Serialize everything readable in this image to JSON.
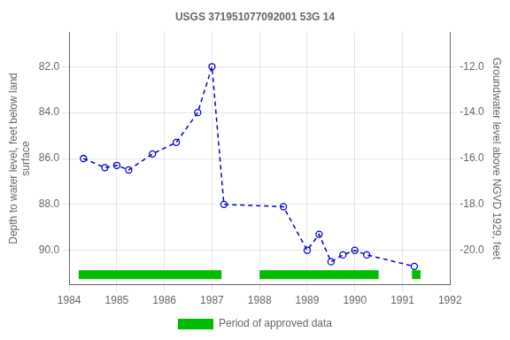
{
  "chart_data": {
    "type": "line",
    "title": "USGS 371951077092001 53G 14",
    "x": [
      1984.3,
      1984.75,
      1985.0,
      1985.25,
      1985.75,
      1986.25,
      1986.7,
      1987.0,
      1987.25,
      1988.5,
      1989.0,
      1989.25,
      1989.5,
      1989.75,
      1990.0,
      1990.25,
      1991.25
    ],
    "series": [
      {
        "values": [
          86.0,
          86.4,
          86.3,
          86.5,
          85.8,
          85.3,
          84.0,
          82.0,
          88.0,
          88.1,
          90.0,
          89.3,
          90.5,
          90.2,
          90.0,
          90.2,
          90.7
        ],
        "color": "#0000CC",
        "marker": "o",
        "line_style": "dashed"
      },
      {
        "name": "Period of approved data",
        "type": "span",
        "color": "#00BB00",
        "segments": [
          [
            1984.2,
            1987.2
          ],
          [
            1988.0,
            1990.5
          ],
          [
            1991.2,
            1991.38
          ]
        ]
      }
    ],
    "xlim": [
      1984,
      1992
    ],
    "xticks": [
      1984,
      1985,
      1986,
      1987,
      1988,
      1989,
      1990,
      1991,
      1992
    ],
    "ylim": [
      91.5,
      80.5
    ],
    "yticks": [
      {
        "value": 82,
        "label": "82.0"
      },
      {
        "value": 84,
        "label": "84.0"
      },
      {
        "value": 86,
        "label": "86.0"
      },
      {
        "value": 88,
        "label": "88.0"
      },
      {
        "value": 90,
        "label": "90.0"
      }
    ],
    "y2lim": [
      -21.5,
      -10.5
    ],
    "y2ticks": [
      {
        "value": -12,
        "label": "-12.0"
      },
      {
        "value": -14,
        "label": "-14.0"
      },
      {
        "value": -16,
        "label": "-16.0"
      },
      {
        "value": -18,
        "label": "-18.0"
      },
      {
        "value": -20,
        "label": "-20.0"
      }
    ],
    "ylabel": "Depth to water level, feet below land\nsurface",
    "y2label": "Groundwater level above NGVD 1929, feet",
    "grid": true,
    "legend": "bottom"
  }
}
